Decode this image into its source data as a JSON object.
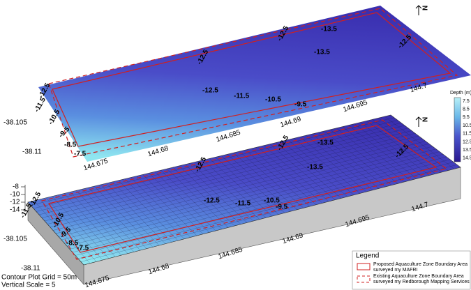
{
  "top_map": {
    "north": "N",
    "contour_labels": [
      "-13.5",
      "-12.5",
      "-13.5",
      "-12.5",
      "-12.5",
      "-12.5",
      "-11.5",
      "-10.5",
      "-9.5",
      "-12.5",
      "-11.5",
      "-10.5",
      "-9.5",
      "-8.5",
      "-7.5"
    ],
    "lat_labels": [
      "-38.105",
      "-38.11"
    ],
    "lon_labels": [
      "144.675",
      "144.68",
      "144.685",
      "144.69",
      "144.695",
      "144.7"
    ]
  },
  "bottom_map": {
    "north": "N",
    "contour_labels": [
      "-13.5",
      "-12.5",
      "-13.5",
      "-12.5",
      "-12.5",
      "-12.5",
      "-11.5",
      "-10.5",
      "-9.5",
      "-12.5",
      "-11.5",
      "-10.5",
      "-9.5",
      "-8.5",
      "-7.5"
    ],
    "lat_labels": [
      "-38.105",
      "-38.11"
    ],
    "lon_labels": [
      "144.675",
      "144.68",
      "144.685",
      "144.69",
      "144.695",
      "144.7"
    ],
    "z_labels": [
      "-8",
      "-10",
      "-12",
      "-14"
    ]
  },
  "colorbar": {
    "title": "Depth (m)",
    "labels": [
      "7.5",
      "8.5",
      "9.5",
      "10.5",
      "11.5",
      "12.5",
      "13.5",
      "14.5"
    ]
  },
  "legend": {
    "title": "Legend",
    "items": [
      "Proposed Aquaculture Zone Boundary Area surveyed my MAFRI",
      "Existing Aquaculture Zone Boundary Area surveyed my Redborough Mapping Services"
    ]
  },
  "notes": [
    "Contour Plot Grid = 50m",
    "Vertical Scale = 5"
  ]
}
